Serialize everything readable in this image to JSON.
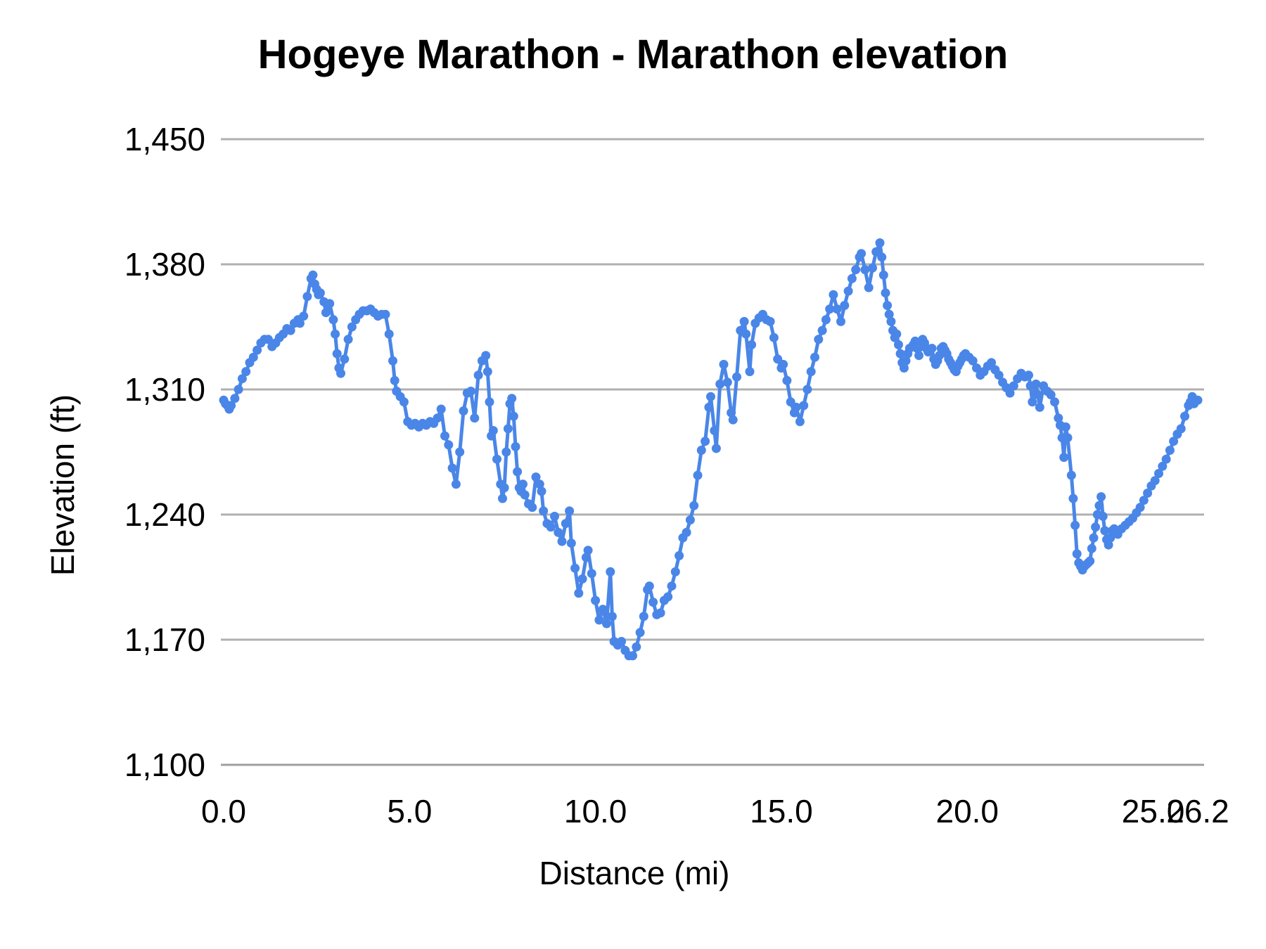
{
  "chart": {
    "title": "Hogeye Marathon - Marathon elevation",
    "x_axis_title": "Distance (mi)",
    "y_axis_title": "Elevation (ft)",
    "x_tick_labels": [
      "0.0",
      "5.0",
      "10.0",
      "15.0",
      "20.0",
      "25.0",
      "26.2"
    ],
    "x_tick_values": [
      0,
      5,
      10,
      15,
      20,
      25,
      26.2
    ],
    "y_tick_labels": [
      "1,100",
      "1,170",
      "1,240",
      "1,310",
      "1,380",
      "1,450"
    ],
    "y_tick_values": [
      1100,
      1170,
      1240,
      1310,
      1380,
      1450
    ],
    "colors": {
      "series": "#4a86e8",
      "gridline": "#b0b0b0",
      "axis_line": "#a0a0a0",
      "text": "#000000",
      "background": "#ffffff"
    }
  },
  "chart_data": {
    "type": "line",
    "title": "Hogeye Marathon - Marathon elevation",
    "xlabel": "Distance (mi)",
    "ylabel": "Elevation (ft)",
    "xlim": [
      0,
      26.2
    ],
    "ylim": [
      1100,
      1450
    ],
    "grid": "horizontal",
    "legend": "none",
    "markers": true,
    "series": [
      {
        "name": "Marathon elevation",
        "x": [
          0,
          0.05,
          0.1,
          0.15,
          0.2,
          0.3,
          0.4,
          0.5,
          0.6,
          0.7,
          0.8,
          0.9,
          1,
          1.1,
          1.2,
          1.3,
          1.4,
          1.5,
          1.6,
          1.7,
          1.8,
          1.9,
          2,
          2.05,
          2.15,
          2.25,
          2.35,
          2.4,
          2.45,
          2.5,
          2.55,
          2.6,
          2.7,
          2.75,
          2.85,
          2.95,
          3,
          3.05,
          3.1,
          3.15,
          3.25,
          3.35,
          3.45,
          3.55,
          3.65,
          3.75,
          3.85,
          3.95,
          4.05,
          4.15,
          4.25,
          4.35,
          4.45,
          4.55,
          4.6,
          4.65,
          4.75,
          4.85,
          4.95,
          5.05,
          5.15,
          5.25,
          5.35,
          5.45,
          5.55,
          5.65,
          5.75,
          5.85,
          5.95,
          6.05,
          6.15,
          6.25,
          6.35,
          6.45,
          6.55,
          6.65,
          6.75,
          6.85,
          6.95,
          7.05,
          7.1,
          7.15,
          7.2,
          7.25,
          7.35,
          7.45,
          7.5,
          7.55,
          7.6,
          7.65,
          7.7,
          7.75,
          7.8,
          7.85,
          7.9,
          7.95,
          8,
          8.05,
          8.1,
          8.2,
          8.3,
          8.4,
          8.5,
          8.55,
          8.6,
          8.7,
          8.8,
          8.9,
          9,
          9.1,
          9.2,
          9.3,
          9.35,
          9.45,
          9.55,
          9.65,
          9.75,
          9.8,
          9.9,
          10,
          10.1,
          10.2,
          10.3,
          10.4,
          10.45,
          10.5,
          10.6,
          10.7,
          10.8,
          10.9,
          11,
          11.1,
          11.2,
          11.3,
          11.4,
          11.45,
          11.55,
          11.65,
          11.75,
          11.85,
          11.95,
          12.05,
          12.15,
          12.25,
          12.35,
          12.45,
          12.55,
          12.65,
          12.75,
          12.85,
          12.95,
          13.05,
          13.1,
          13.2,
          13.25,
          13.35,
          13.45,
          13.55,
          13.65,
          13.7,
          13.8,
          13.9,
          14,
          14.05,
          14.15,
          14.2,
          14.3,
          14.4,
          14.5,
          14.6,
          14.7,
          14.8,
          14.9,
          15,
          15.05,
          15.15,
          15.25,
          15.35,
          15.4,
          15.5,
          15.6,
          15.7,
          15.8,
          15.9,
          16,
          16.1,
          16.2,
          16.3,
          16.4,
          16.5,
          16.6,
          16.7,
          16.8,
          16.9,
          17,
          17.1,
          17.15,
          17.25,
          17.35,
          17.45,
          17.55,
          17.65,
          17.7,
          17.75,
          17.8,
          17.85,
          17.9,
          17.95,
          18,
          18.05,
          18.1,
          18.15,
          18.2,
          18.25,
          18.3,
          18.35,
          18.4,
          18.45,
          18.55,
          18.6,
          18.65,
          18.7,
          18.75,
          18.8,
          18.85,
          18.9,
          18.95,
          19,
          19.05,
          19.1,
          19.15,
          19.2,
          19.25,
          19.3,
          19.35,
          19.4,
          19.45,
          19.5,
          19.55,
          19.6,
          19.65,
          19.7,
          19.75,
          19.8,
          19.85,
          19.9,
          19.95,
          20.05,
          20.15,
          20.25,
          20.35,
          20.45,
          20.55,
          20.65,
          20.75,
          20.85,
          20.95,
          21.05,
          21.15,
          21.25,
          21.35,
          21.45,
          21.55,
          21.65,
          21.7,
          21.75,
          21.85,
          21.9,
          21.95,
          22.05,
          22.15,
          22.25,
          22.35,
          22.45,
          22.5,
          22.55,
          22.6,
          22.65,
          22.7,
          22.8,
          22.85,
          22.9,
          22.95,
          23,
          23.05,
          23.1,
          23.15,
          23.2,
          23.25,
          23.3,
          23.35,
          23.4,
          23.45,
          23.5,
          23.55,
          23.6,
          23.65,
          23.7,
          23.75,
          23.8,
          23.85,
          23.9,
          23.95,
          24.05,
          24.15,
          24.25,
          24.35,
          24.45,
          24.55,
          24.65,
          24.75,
          24.85,
          24.95,
          25.05,
          25.15,
          25.25,
          25.35,
          25.45,
          25.55,
          25.65,
          25.75,
          25.85,
          25.95,
          26,
          26.05,
          26.1,
          26.15,
          26.2
        ],
        "y": [
          1304,
          1302,
          1301,
          1299,
          1301,
          1305,
          1310,
          1316,
          1320,
          1325,
          1328,
          1332,
          1336,
          1338,
          1338,
          1334,
          1336,
          1339,
          1341,
          1344,
          1343,
          1347,
          1349,
          1347,
          1351,
          1362,
          1372,
          1374,
          1369,
          1366,
          1363,
          1364,
          1359,
          1353,
          1358,
          1349,
          1341,
          1330,
          1322,
          1319,
          1327,
          1338,
          1345,
          1349,
          1352,
          1354,
          1354,
          1355,
          1353,
          1351,
          1352,
          1352,
          1341,
          1326,
          1315,
          1309,
          1306,
          1303,
          1292,
          1290,
          1291,
          1289,
          1291,
          1290,
          1292,
          1291,
          1294,
          1299,
          1284,
          1279,
          1266,
          1257,
          1275,
          1298,
          1308,
          1309,
          1294,
          1318,
          1326,
          1329,
          1320,
          1303,
          1284,
          1287,
          1271,
          1257,
          1249,
          1255,
          1275,
          1288,
          1302,
          1305,
          1295,
          1278,
          1264,
          1255,
          1253,
          1257,
          1251,
          1246,
          1244,
          1261,
          1257,
          1253,
          1242,
          1235,
          1233,
          1239,
          1230,
          1225,
          1235,
          1242,
          1224,
          1210,
          1196,
          1204,
          1216,
          1220,
          1207,
          1192,
          1181,
          1187,
          1179,
          1208,
          1183,
          1169,
          1167,
          1169,
          1164,
          1161,
          1161,
          1166,
          1174,
          1183,
          1198,
          1200,
          1191,
          1184,
          1185,
          1192,
          1194,
          1200,
          1208,
          1217,
          1227,
          1230,
          1237,
          1245,
          1262,
          1276,
          1281,
          1300,
          1306,
          1287,
          1277,
          1313,
          1324,
          1314,
          1297,
          1293,
          1317,
          1343,
          1348,
          1341,
          1320,
          1335,
          1347,
          1350,
          1352,
          1349,
          1348,
          1339,
          1327,
          1322,
          1324,
          1315,
          1303,
          1297,
          1300,
          1292,
          1301,
          1310,
          1320,
          1328,
          1338,
          1343,
          1349,
          1355,
          1363,
          1355,
          1348,
          1357,
          1365,
          1372,
          1377,
          1384,
          1386,
          1377,
          1367,
          1378,
          1387,
          1392,
          1384,
          1374,
          1364,
          1357,
          1352,
          1348,
          1343,
          1339,
          1341,
          1335,
          1330,
          1325,
          1322,
          1326,
          1330,
          1333,
          1335,
          1337,
          1333,
          1329,
          1334,
          1338,
          1336,
          1333,
          1331,
          1332,
          1333,
          1327,
          1324,
          1326,
          1329,
          1333,
          1334,
          1332,
          1330,
          1327,
          1325,
          1323,
          1321,
          1320,
          1323,
          1325,
          1327,
          1329,
          1330,
          1328,
          1326,
          1322,
          1318,
          1320,
          1323,
          1325,
          1321,
          1318,
          1314,
          1311,
          1308,
          1312,
          1316,
          1319,
          1317,
          1318,
          1312,
          1303,
          1313,
          1307,
          1300,
          1312,
          1309,
          1307,
          1303,
          1294,
          1290,
          1283,
          1272,
          1289,
          1283,
          1262,
          1249,
          1234,
          1218,
          1213,
          1211,
          1209,
          1211,
          1212,
          1213,
          1214,
          1221,
          1227,
          1233,
          1240,
          1245,
          1250,
          1239,
          1231,
          1226,
          1223,
          1227,
          1231,
          1232,
          1229,
          1232,
          1234,
          1236,
          1238,
          1241,
          1244,
          1248,
          1252,
          1256,
          1259,
          1263,
          1267,
          1271,
          1276,
          1281,
          1285,
          1288,
          1295,
          1301,
          1303,
          1306,
          1302,
          1304,
          1304
        ]
      }
    ]
  }
}
